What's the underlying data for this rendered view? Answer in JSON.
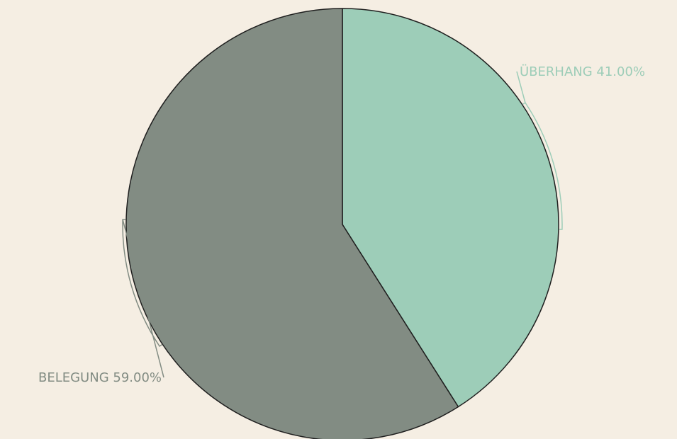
{
  "colors": {
    "background": "#f5eee3",
    "outline": "#1f1f1f"
  },
  "chart_data": {
    "type": "pie",
    "title": "",
    "start_angle_deg": 0,
    "direction": "clockwise",
    "slices": [
      {
        "category": "ÜBERHANG",
        "value": 41.0,
        "label": "ÜBERHANG 41.00%",
        "color": "#9dcdb8"
      },
      {
        "category": "BELEGUNG",
        "value": 59.0,
        "label": "BELEGUNG 59.00%",
        "color": "#828c83"
      }
    ]
  }
}
